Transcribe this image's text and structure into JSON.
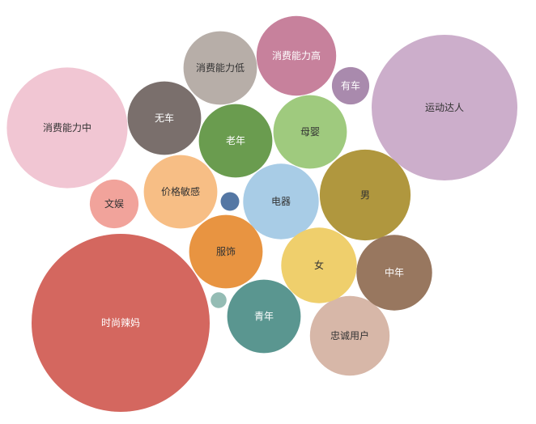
{
  "chart_data": {
    "type": "bubble",
    "title": "",
    "legend": "none",
    "series": [
      {
        "name": "时尚辣妈",
        "value": 100,
        "color": "#d4675f",
        "label_color": "#ffffff"
      },
      {
        "name": "运动达人",
        "value": 67,
        "color": "#ccaecb",
        "label_color": "#333333"
      },
      {
        "name": "消费能力中",
        "value": 46,
        "color": "#f1c6d3",
        "label_color": "#333333"
      },
      {
        "name": "男",
        "value": 26,
        "color": "#b0973e",
        "label_color": "#333333"
      },
      {
        "name": "忠诚用户",
        "value": 20,
        "color": "#d7b7a8",
        "label_color": "#333333"
      },
      {
        "name": "消费能力高",
        "value": 20,
        "color": "#c7819c",
        "label_color": "#ffffff"
      },
      {
        "name": "中年",
        "value": 18,
        "color": "#98775f",
        "label_color": "#ffffff"
      },
      {
        "name": "电器",
        "value": 18,
        "color": "#a8cce6",
        "label_color": "#333333"
      },
      {
        "name": "女",
        "value": 18,
        "color": "#efcf6c",
        "label_color": "#333333"
      },
      {
        "name": "消费能力低",
        "value": 17,
        "color": "#b7aea8",
        "label_color": "#333333"
      },
      {
        "name": "母婴",
        "value": 17,
        "color": "#9fca7e",
        "label_color": "#333333"
      },
      {
        "name": "老年",
        "value": 17,
        "color": "#6a9c4f",
        "label_color": "#ffffff"
      },
      {
        "name": "价格敏感",
        "value": 17,
        "color": "#f7be85",
        "label_color": "#333333"
      },
      {
        "name": "青年",
        "value": 17,
        "color": "#5a9690",
        "label_color": "#ffffff"
      },
      {
        "name": "服饰",
        "value": 17,
        "color": "#e89441",
        "label_color": "#333333"
      },
      {
        "name": "无车",
        "value": 17,
        "color": "#7a6f6c",
        "label_color": "#ffffff"
      },
      {
        "name": "文娱",
        "value": 7.5,
        "color": "#f1a39b",
        "label_color": "#333333"
      },
      {
        "name": "有车",
        "value": 4.4,
        "color": "#a98aad",
        "label_color": "#ffffff"
      },
      {
        "name": "",
        "value": 1.1,
        "color": "#5477a4",
        "label_color": "#ffffff"
      },
      {
        "name": "",
        "value": 0.8,
        "color": "#94bcb4",
        "label_color": "#ffffff"
      }
    ]
  }
}
